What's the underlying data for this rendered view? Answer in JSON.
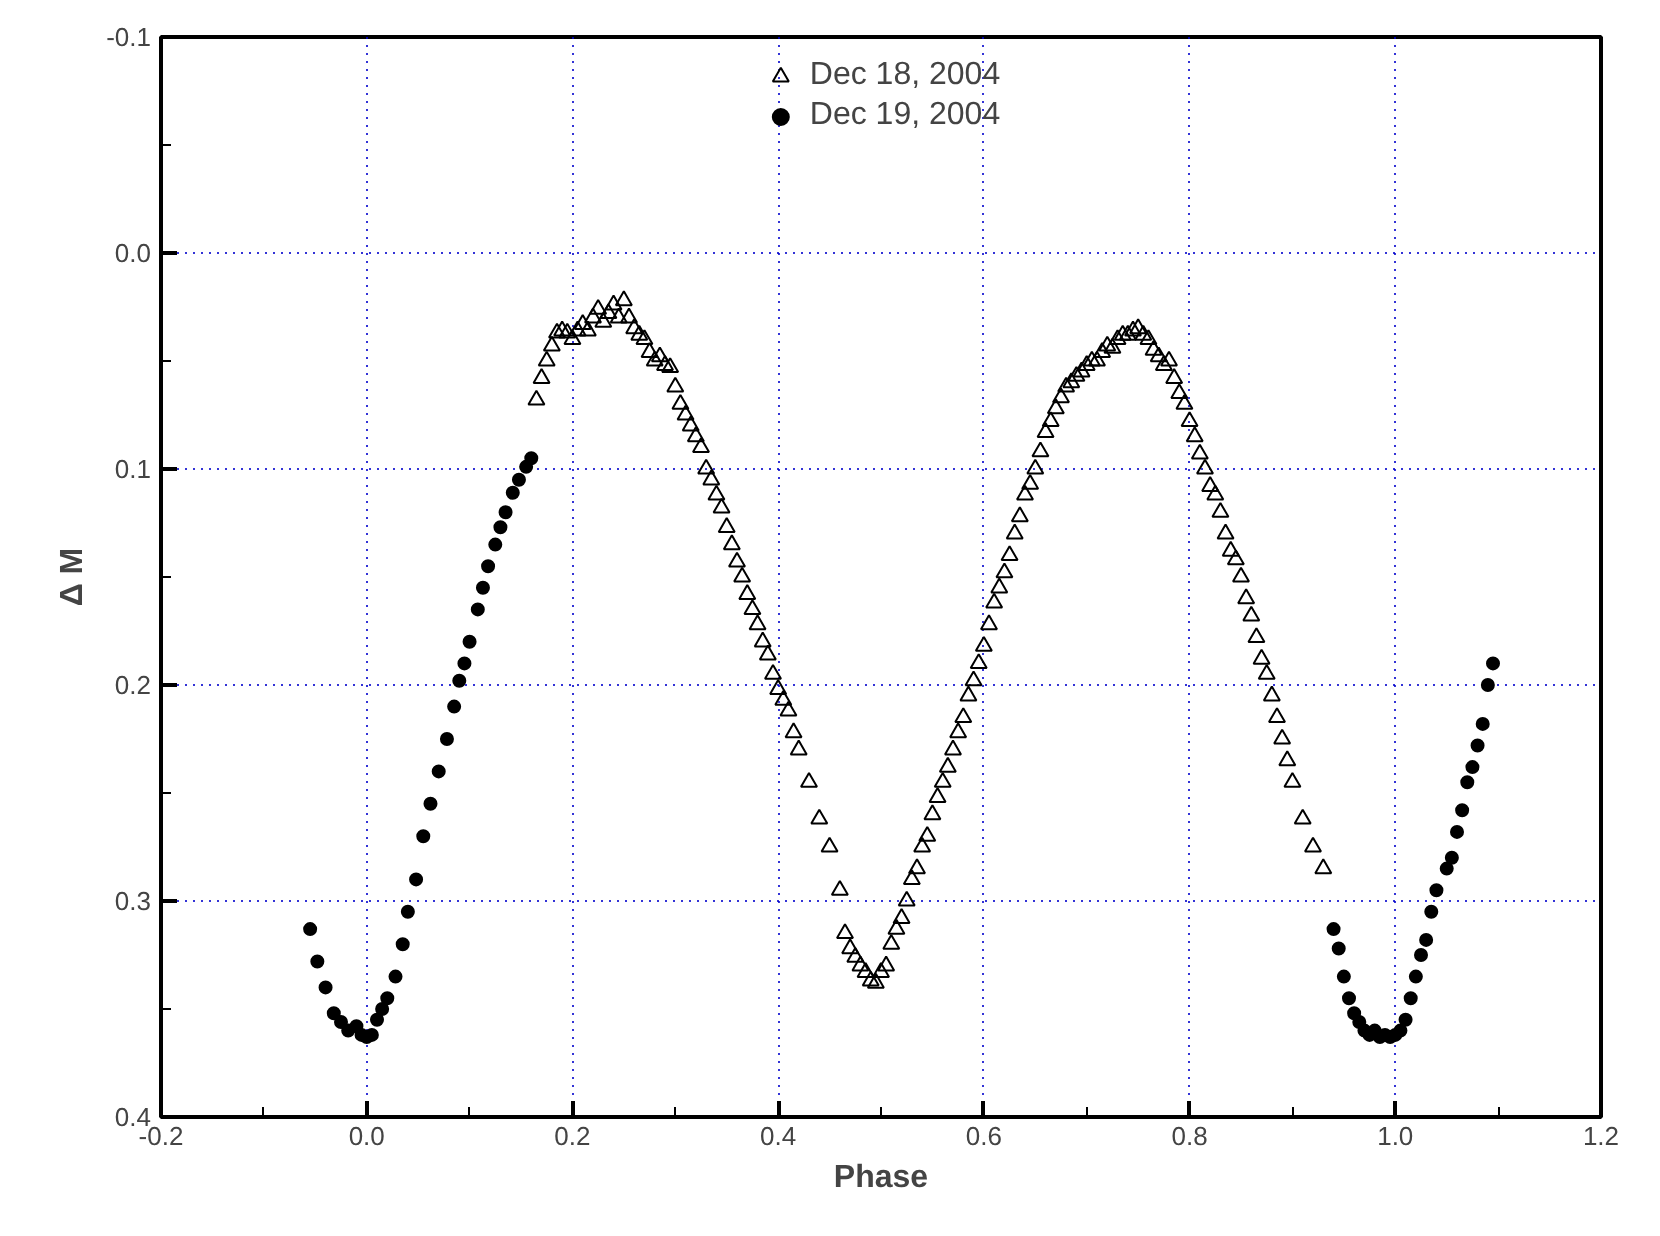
{
  "chart_data": {
    "type": "scatter",
    "xlabel": "Phase",
    "ylabel": "Δ M",
    "xlim": [
      -0.2,
      1.2
    ],
    "xticks": [
      {
        "value": -0.2,
        "label": "-0.2"
      },
      {
        "value": 0,
        "label": "0.0"
      },
      {
        "value": 0.2,
        "label": "0.2"
      },
      {
        "value": 0.4,
        "label": "0.4"
      },
      {
        "value": 0.6,
        "label": "0.6"
      },
      {
        "value": 0.8,
        "label": "0.8"
      },
      {
        "value": 1,
        "label": "1.0"
      },
      {
        "value": 1.2,
        "label": "1.2"
      }
    ],
    "ylim": [
      0.4,
      -0.1
    ],
    "yticks": [
      {
        "value": 0.4,
        "label": "0.4"
      },
      {
        "value": 0.3,
        "label": "0.3"
      },
      {
        "value": 0.2,
        "label": "0.2"
      },
      {
        "value": 0.1,
        "label": "0.1"
      },
      {
        "value": 0,
        "label": "0.0"
      },
      {
        "value": -0.1,
        "label": "-0.1"
      }
    ],
    "grid": true,
    "legend": "top",
    "series": [
      {
        "name": "Dec 18, 2004",
        "color": "#000000",
        "marker": "triangle",
        "x": [
          0.165,
          0.17,
          0.175,
          0.18,
          0.185,
          0.19,
          0.195,
          0.2,
          0.205,
          0.21,
          0.215,
          0.22,
          0.225,
          0.23,
          0.235,
          0.24,
          0.245,
          0.25,
          0.255,
          0.26,
          0.265,
          0.27,
          0.275,
          0.28,
          0.285,
          0.29,
          0.295,
          0.3,
          0.305,
          0.31,
          0.315,
          0.32,
          0.325,
          0.33,
          0.335,
          0.34,
          0.345,
          0.35,
          0.355,
          0.36,
          0.365,
          0.37,
          0.375,
          0.38,
          0.385,
          0.39,
          0.395,
          0.4,
          0.405,
          0.41,
          0.415,
          0.42,
          0.43,
          0.44,
          0.45,
          0.46,
          0.465,
          0.47,
          0.475,
          0.48,
          0.485,
          0.49,
          0.495,
          0.5,
          0.505,
          0.51,
          0.515,
          0.52,
          0.525,
          0.53,
          0.535,
          0.54,
          0.545,
          0.55,
          0.555,
          0.56,
          0.565,
          0.57,
          0.575,
          0.58,
          0.585,
          0.59,
          0.595,
          0.6,
          0.605,
          0.61,
          0.615,
          0.62,
          0.625,
          0.63,
          0.635,
          0.64,
          0.645,
          0.65,
          0.655,
          0.66,
          0.665,
          0.67,
          0.675,
          0.68,
          0.685,
          0.69,
          0.695,
          0.7,
          0.705,
          0.71,
          0.715,
          0.72,
          0.725,
          0.73,
          0.735,
          0.74,
          0.745,
          0.75,
          0.755,
          0.76,
          0.765,
          0.77,
          0.775,
          0.78,
          0.785,
          0.79,
          0.795,
          0.8,
          0.805,
          0.81,
          0.815,
          0.82,
          0.825,
          0.83,
          0.835,
          0.84,
          0.845,
          0.85,
          0.855,
          0.86,
          0.865,
          0.87,
          0.875,
          0.88,
          0.885,
          0.89,
          0.895,
          0.9,
          0.91,
          0.92,
          0.93
        ],
        "values": [
          0.068,
          0.058,
          0.05,
          0.043,
          0.037,
          0.036,
          0.037,
          0.04,
          0.036,
          0.033,
          0.036,
          0.03,
          0.026,
          0.032,
          0.028,
          0.024,
          0.03,
          0.022,
          0.03,
          0.035,
          0.038,
          0.04,
          0.046,
          0.05,
          0.048,
          0.052,
          0.053,
          0.062,
          0.07,
          0.075,
          0.08,
          0.085,
          0.09,
          0.1,
          0.105,
          0.112,
          0.118,
          0.127,
          0.135,
          0.143,
          0.15,
          0.158,
          0.165,
          0.172,
          0.18,
          0.186,
          0.195,
          0.202,
          0.207,
          0.212,
          0.222,
          0.23,
          0.245,
          0.262,
          0.275,
          0.295,
          0.315,
          0.322,
          0.326,
          0.33,
          0.333,
          0.337,
          0.338,
          0.333,
          0.33,
          0.32,
          0.313,
          0.308,
          0.3,
          0.29,
          0.285,
          0.275,
          0.27,
          0.26,
          0.252,
          0.245,
          0.238,
          0.23,
          0.222,
          0.215,
          0.205,
          0.198,
          0.19,
          0.182,
          0.172,
          0.162,
          0.155,
          0.148,
          0.14,
          0.13,
          0.122,
          0.112,
          0.107,
          0.1,
          0.092,
          0.083,
          0.078,
          0.072,
          0.067,
          0.062,
          0.06,
          0.057,
          0.055,
          0.052,
          0.05,
          0.05,
          0.046,
          0.043,
          0.044,
          0.04,
          0.038,
          0.038,
          0.036,
          0.035,
          0.038,
          0.04,
          0.045,
          0.048,
          0.052,
          0.05,
          0.058,
          0.065,
          0.07,
          0.078,
          0.085,
          0.093,
          0.1,
          0.108,
          0.112,
          0.12,
          0.13,
          0.138,
          0.142,
          0.15,
          0.16,
          0.168,
          0.178,
          0.188,
          0.195,
          0.205,
          0.215,
          0.225,
          0.235,
          0.245,
          0.262,
          0.275,
          0.285
        ]
      },
      {
        "name": "Dec 19, 2004",
        "color": "#000000",
        "marker": "circle",
        "x": [
          -0.055,
          -0.048,
          -0.04,
          -0.032,
          -0.025,
          -0.018,
          -0.01,
          -0.005,
          0,
          0.005,
          0.01,
          0.015,
          0.02,
          0.028,
          0.035,
          0.04,
          0.048,
          0.055,
          0.062,
          0.07,
          0.078,
          0.085,
          0.09,
          0.095,
          0.1,
          0.108,
          0.113,
          0.118,
          0.125,
          0.13,
          0.135,
          0.142,
          0.148,
          0.155,
          0.16,
          0.94,
          0.945,
          0.95,
          0.955,
          0.96,
          0.965,
          0.97,
          0.975,
          0.98,
          0.985,
          0.99,
          0.995,
          1,
          1.005,
          1.01,
          1.015,
          1.02,
          1.025,
          1.03,
          1.035,
          1.04,
          1.05,
          1.055,
          1.06,
          1.065,
          1.07,
          1.075,
          1.08,
          1.085,
          1.09,
          1.095
        ],
        "values": [
          0.313,
          0.328,
          0.34,
          0.352,
          0.356,
          0.36,
          0.358,
          0.362,
          0.363,
          0.362,
          0.355,
          0.35,
          0.345,
          0.335,
          0.32,
          0.305,
          0.29,
          0.27,
          0.255,
          0.24,
          0.225,
          0.21,
          0.198,
          0.19,
          0.18,
          0.165,
          0.155,
          0.145,
          0.135,
          0.127,
          0.12,
          0.111,
          0.105,
          0.099,
          0.095,
          0.313,
          0.322,
          0.335,
          0.345,
          0.352,
          0.356,
          0.36,
          0.362,
          0.36,
          0.363,
          0.362,
          0.363,
          0.362,
          0.36,
          0.355,
          0.345,
          0.335,
          0.325,
          0.318,
          0.305,
          0.295,
          0.285,
          0.28,
          0.268,
          0.258,
          0.245,
          0.238,
          0.228,
          0.218,
          0.2,
          0.19
        ]
      }
    ]
  }
}
